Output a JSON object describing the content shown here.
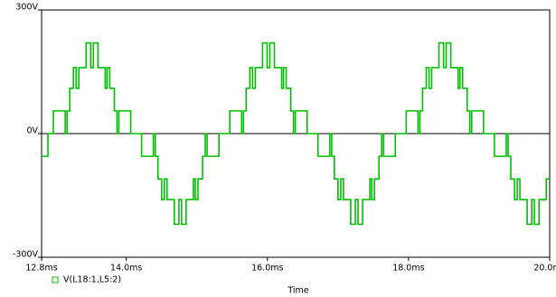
{
  "chart_data": {
    "type": "line",
    "step": "post",
    "x_label": "Time",
    "xlim": [
      12.8,
      20.0
    ],
    "ylim": [
      -300,
      300
    ],
    "xticks": [
      {
        "value": 12.8,
        "label": "12.8ms"
      },
      {
        "value": 14.0,
        "label": "14.0ms"
      },
      {
        "value": 16.0,
        "label": "16.0ms"
      },
      {
        "value": 18.0,
        "label": "18.0ms"
      },
      {
        "value": 20.0,
        "label": "20.0ms"
      }
    ],
    "yticks": [
      {
        "value": -300,
        "label": "-300V"
      },
      {
        "value": 0,
        "label": "0V"
      },
      {
        "value": 300,
        "label": "300V"
      }
    ],
    "zero_line": true,
    "x": [
      12.8,
      12.89,
      12.967,
      13.135,
      13.161,
      13.199,
      13.251,
      13.29,
      13.328,
      13.431,
      13.496,
      13.534,
      13.599,
      13.702,
      13.728,
      13.766,
      13.831,
      13.869,
      13.895,
      14.063,
      14.14,
      14.217,
      14.385,
      14.411,
      14.449,
      14.501,
      14.54,
      14.578,
      14.681,
      14.746,
      14.784,
      14.849,
      14.952,
      14.978,
      15.016,
      15.081,
      15.119,
      15.145,
      15.313,
      15.39,
      15.467,
      15.635,
      15.661,
      15.699,
      15.751,
      15.79,
      15.828,
      15.931,
      15.996,
      16.034,
      16.099,
      16.202,
      16.228,
      16.266,
      16.331,
      16.369,
      16.395,
      16.563,
      16.64,
      16.717,
      16.885,
      16.911,
      16.949,
      17.001,
      17.04,
      17.078,
      17.181,
      17.246,
      17.284,
      17.349,
      17.452,
      17.478,
      17.516,
      17.581,
      17.619,
      17.645,
      17.813,
      17.89,
      17.967,
      18.135,
      18.161,
      18.199,
      18.251,
      18.29,
      18.328,
      18.431,
      18.496,
      18.534,
      18.599,
      18.702,
      18.728,
      18.766,
      18.831,
      18.869,
      18.895,
      19.063,
      19.14,
      19.217,
      19.385,
      19.411,
      19.449,
      19.501,
      19.54,
      19.578,
      19.681,
      19.746,
      19.784,
      19.849,
      19.952
    ],
    "series": [
      {
        "name": "V(L18:1,L5:2)",
        "color": "#00c000",
        "values": [
          -55,
          0,
          55,
          0,
          55,
          110,
          160,
          110,
          160,
          220,
          160,
          220,
          160,
          110,
          160,
          110,
          55,
          0,
          55,
          0,
          0,
          -55,
          0,
          -55,
          -110,
          -160,
          -110,
          -160,
          -220,
          -160,
          -220,
          -160,
          -110,
          -160,
          -110,
          -55,
          0,
          -55,
          0,
          0,
          55,
          0,
          55,
          110,
          160,
          110,
          160,
          220,
          160,
          220,
          160,
          110,
          160,
          110,
          55,
          0,
          55,
          0,
          0,
          -55,
          0,
          -55,
          -110,
          -160,
          -110,
          -160,
          -220,
          -160,
          -220,
          -160,
          -110,
          -160,
          -110,
          -55,
          0,
          -55,
          0,
          0,
          55,
          0,
          55,
          110,
          160,
          110,
          160,
          220,
          160,
          220,
          160,
          110,
          160,
          110,
          55,
          0,
          55,
          0,
          0,
          -55,
          0,
          -55,
          -110,
          -160,
          -110,
          -160,
          -220,
          -160,
          -220,
          -160,
          -110
        ]
      }
    ]
  }
}
